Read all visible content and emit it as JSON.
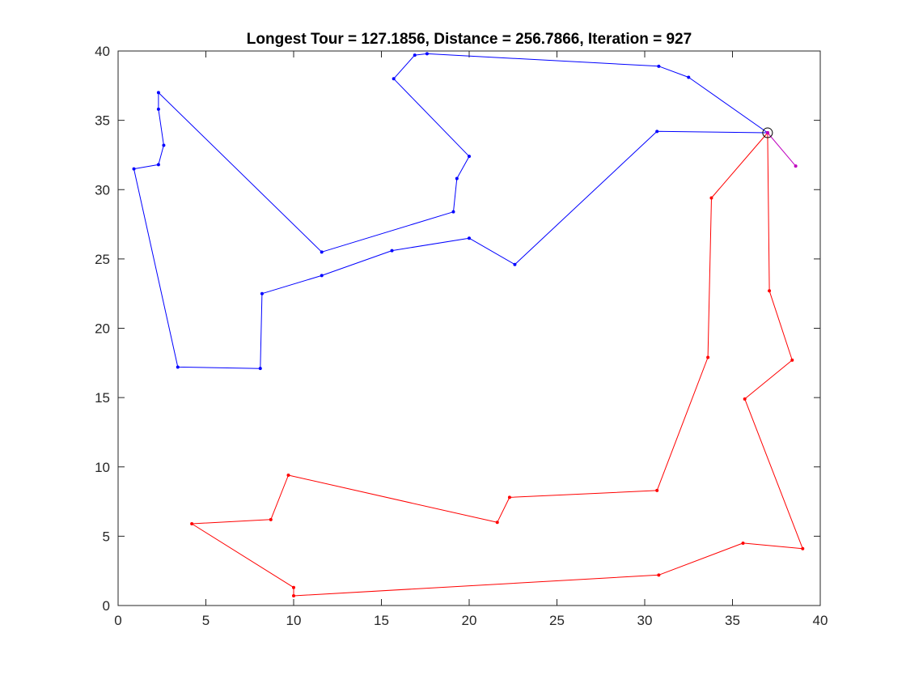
{
  "chart_data": {
    "type": "line",
    "title": "Longest Tour = 127.1856, Distance = 256.7866, Iteration = 927",
    "xlabel": "",
    "ylabel": "",
    "xlim": [
      0,
      40
    ],
    "ylim": [
      0,
      40
    ],
    "xticks": [
      "0",
      "5",
      "10",
      "15",
      "20",
      "25",
      "30",
      "35",
      "40"
    ],
    "yticks": [
      "0",
      "5",
      "10",
      "15",
      "20",
      "25",
      "30",
      "35",
      "40"
    ],
    "grid": false,
    "depot": {
      "x": 37.0,
      "y": 34.1
    },
    "series": [
      {
        "color": "#0000ff",
        "points": [
          [
            37.0,
            34.1
          ],
          [
            32.5,
            38.1
          ],
          [
            30.8,
            38.9
          ],
          [
            17.6,
            39.8
          ],
          [
            16.9,
            39.7
          ],
          [
            15.7,
            38.0
          ],
          [
            20.0,
            32.4
          ],
          [
            19.3,
            30.8
          ],
          [
            19.1,
            28.4
          ],
          [
            11.6,
            25.5
          ],
          [
            2.3,
            37.0
          ],
          [
            2.3,
            35.8
          ],
          [
            2.6,
            33.2
          ],
          [
            2.3,
            31.8
          ],
          [
            0.9,
            31.5
          ],
          [
            3.4,
            17.2
          ],
          [
            8.1,
            17.1
          ],
          [
            8.2,
            22.5
          ],
          [
            11.6,
            23.8
          ],
          [
            15.6,
            25.6
          ],
          [
            20.0,
            26.5
          ],
          [
            22.6,
            24.6
          ],
          [
            30.7,
            34.2
          ],
          [
            37.0,
            34.1
          ]
        ]
      },
      {
        "color": "#ff0000",
        "points": [
          [
            37.0,
            34.1
          ],
          [
            33.8,
            29.4
          ],
          [
            33.6,
            17.9
          ],
          [
            30.7,
            8.3
          ],
          [
            22.3,
            7.8
          ],
          [
            21.6,
            6.0
          ],
          [
            9.7,
            9.4
          ],
          [
            8.7,
            6.2
          ],
          [
            4.2,
            5.9
          ],
          [
            10.0,
            1.3
          ],
          [
            10.0,
            0.7
          ],
          [
            30.8,
            2.2
          ],
          [
            35.6,
            4.5
          ],
          [
            39.0,
            4.1
          ],
          [
            35.7,
            14.9
          ],
          [
            38.4,
            17.7
          ],
          [
            37.1,
            22.7
          ],
          [
            37.0,
            34.1
          ]
        ]
      },
      {
        "color": "#bf00bf",
        "points": [
          [
            37.0,
            34.1
          ],
          [
            38.6,
            31.7
          ]
        ]
      }
    ]
  }
}
